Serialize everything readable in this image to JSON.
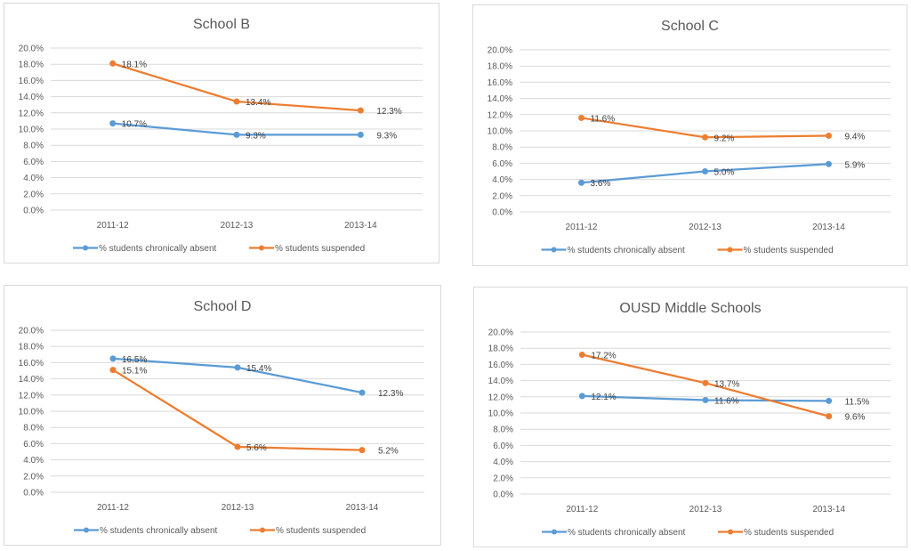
{
  "colors": {
    "absent": "#5b9bd5",
    "suspended": "#ed7d31"
  },
  "chart_data": [
    {
      "type": "line",
      "title": "School B",
      "categories": [
        "2011-12",
        "2012-13",
        "2013-14"
      ],
      "ylim": [
        0,
        20
      ],
      "yticks": [
        "0.0%",
        "2.0%",
        "4.0%",
        "6.0%",
        "8.0%",
        "10.0%",
        "12.0%",
        "14.0%",
        "16.0%",
        "18.0%",
        "20.0%"
      ],
      "grid": true,
      "legend": "bottom",
      "series": [
        {
          "name": "% students chronically absent",
          "values": [
            10.7,
            9.3,
            9.3
          ],
          "labels": [
            "10.7%",
            "9.3%",
            "9.3%"
          ]
        },
        {
          "name": "% students suspended",
          "values": [
            18.1,
            13.4,
            12.3
          ],
          "labels": [
            "18.1%",
            "13.4%",
            "12.3%"
          ]
        }
      ]
    },
    {
      "type": "line",
      "title": "School C",
      "categories": [
        "2011-12",
        "2012-13",
        "2013-14"
      ],
      "ylim": [
        0,
        20
      ],
      "yticks": [
        "0.0%",
        "2.0%",
        "4.0%",
        "6.0%",
        "8.0%",
        "10.0%",
        "12.0%",
        "14.0%",
        "16.0%",
        "18.0%",
        "20.0%"
      ],
      "grid": true,
      "legend": "bottom",
      "series": [
        {
          "name": "% students chronically absent",
          "values": [
            3.6,
            5.0,
            5.9
          ],
          "labels": [
            "3.6%",
            "5.0%",
            "5.9%"
          ]
        },
        {
          "name": "% students suspended",
          "values": [
            11.6,
            9.2,
            9.4
          ],
          "labels": [
            "11.6%",
            "9.2%",
            "9.4%"
          ]
        }
      ]
    },
    {
      "type": "line",
      "title": "School D",
      "categories": [
        "2011-12",
        "2012-13",
        "2013-14"
      ],
      "ylim": [
        0,
        20
      ],
      "yticks": [
        "0.0%",
        "2.0%",
        "4.0%",
        "6.0%",
        "8.0%",
        "10.0%",
        "12.0%",
        "14.0%",
        "16.0%",
        "18.0%",
        "20.0%"
      ],
      "grid": true,
      "legend": "bottom",
      "series": [
        {
          "name": "% students chronically absent",
          "values": [
            16.5,
            15.4,
            12.3
          ],
          "labels": [
            "16.5%",
            "15.4%",
            "12.3%"
          ]
        },
        {
          "name": "% students suspended",
          "values": [
            15.1,
            5.6,
            5.2
          ],
          "labels": [
            "15.1%",
            "5.6%",
            "5.2%"
          ]
        }
      ]
    },
    {
      "type": "line",
      "title": "OUSD Middle Schools",
      "categories": [
        "2011-12",
        "2012-13",
        "2013-14"
      ],
      "ylim": [
        0,
        20
      ],
      "yticks": [
        "0.0%",
        "2.0%",
        "4.0%",
        "6.0%",
        "8.0%",
        "10.0%",
        "12.0%",
        "14.0%",
        "16.0%",
        "18.0%",
        "20.0%"
      ],
      "grid": true,
      "legend": "bottom",
      "series": [
        {
          "name": "% students chronically absent",
          "values": [
            12.1,
            11.6,
            11.5
          ],
          "labels": [
            "12.1%",
            "11.6%",
            "11.5%"
          ]
        },
        {
          "name": "% students suspended",
          "values": [
            17.2,
            13.7,
            9.6
          ],
          "labels": [
            "17.2%",
            "13.7%",
            "9.6%"
          ]
        }
      ]
    }
  ]
}
